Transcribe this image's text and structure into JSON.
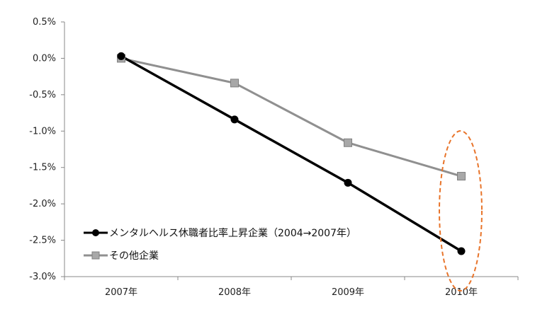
{
  "chart_data": {
    "type": "line",
    "categories": [
      "2007年",
      "2008年",
      "2009年",
      "2010年"
    ],
    "series": [
      {
        "name": "メンタルヘルス休職者比率上昇企業（2004→2007年）",
        "values": [
          0.03,
          -0.84,
          -1.71,
          -2.65
        ],
        "color": "#000000",
        "marker": "circle"
      },
      {
        "name": "その他企業",
        "values": [
          0.0,
          -0.34,
          -1.16,
          -1.62
        ],
        "color": "#909090",
        "marker": "square"
      }
    ],
    "y_ticks": [
      "0.5%",
      "0.0%",
      "-0.5%",
      "-1.0%",
      "-1.5%",
      "-2.0%",
      "-2.5%",
      "-3.0%"
    ],
    "ylim": [
      -3.0,
      0.5
    ],
    "grid": false,
    "legend_position": "bottom-left",
    "annotation": {
      "type": "dashed-ellipse",
      "target_category": "2010年",
      "color": "#e8742a"
    }
  }
}
